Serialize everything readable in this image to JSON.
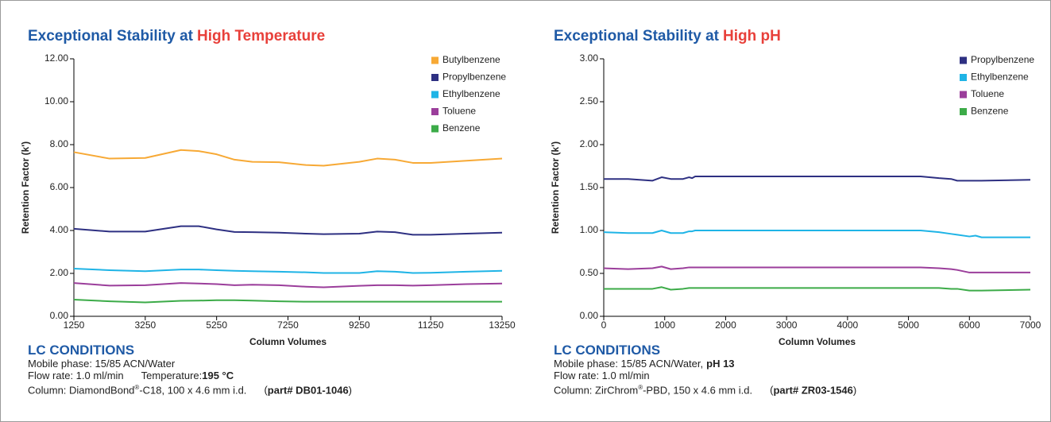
{
  "chart_data": [
    {
      "type": "line",
      "title": {
        "text": "Exceptional Stability at",
        "highlight": "High Temperature"
      },
      "xlabel": "Column Volumes",
      "ylabel": "Retention Factor (k')",
      "x": [
        1250,
        2250,
        3250,
        4250,
        4750,
        5250,
        5750,
        6250,
        7000,
        7750,
        8250,
        9250,
        9750,
        10250,
        10750,
        11250,
        12250,
        13250
      ],
      "xlim": [
        1250,
        13250
      ],
      "xticks": [
        1250,
        3250,
        5250,
        7250,
        9250,
        11250,
        13250
      ],
      "ylim": [
        0,
        12
      ],
      "yticks": [
        {
          "value": 0,
          "label": "0.00"
        },
        {
          "value": 2,
          "label": "2.00"
        },
        {
          "value": 4,
          "label": "4.00"
        },
        {
          "value": 6,
          "label": "6.00"
        },
        {
          "value": 8,
          "label": "8.00"
        },
        {
          "value": 10,
          "label": "10.00"
        },
        {
          "value": 12,
          "label": "12.00"
        }
      ],
      "legend": "upper right",
      "grid": false,
      "series": [
        {
          "name": "Butylbenzene",
          "color": "#f7a935",
          "values": [
            7.65,
            7.35,
            7.38,
            7.75,
            7.7,
            7.55,
            7.3,
            7.2,
            7.18,
            7.05,
            7.02,
            7.2,
            7.35,
            7.3,
            7.15,
            7.15,
            7.25,
            7.35
          ]
        },
        {
          "name": "Propylbenzene",
          "color": "#2e3082",
          "values": [
            4.08,
            3.95,
            3.95,
            4.2,
            4.2,
            4.05,
            3.93,
            3.92,
            3.9,
            3.85,
            3.83,
            3.85,
            3.95,
            3.92,
            3.8,
            3.8,
            3.85,
            3.9
          ]
        },
        {
          "name": "Ethylbenzene",
          "color": "#1fb4e6",
          "values": [
            2.22,
            2.15,
            2.1,
            2.18,
            2.18,
            2.15,
            2.12,
            2.1,
            2.08,
            2.05,
            2.02,
            2.02,
            2.1,
            2.08,
            2.02,
            2.03,
            2.08,
            2.12
          ]
        },
        {
          "name": "Toluene",
          "color": "#9b3e9b",
          "values": [
            1.55,
            1.43,
            1.45,
            1.55,
            1.53,
            1.5,
            1.45,
            1.47,
            1.45,
            1.38,
            1.35,
            1.42,
            1.45,
            1.45,
            1.43,
            1.45,
            1.5,
            1.53
          ]
        },
        {
          "name": "Benzene",
          "color": "#3cab48",
          "values": [
            0.78,
            0.7,
            0.65,
            0.72,
            0.73,
            0.75,
            0.75,
            0.73,
            0.7,
            0.68,
            0.68,
            0.68,
            0.68,
            0.68,
            0.68,
            0.68,
            0.68,
            0.68
          ]
        }
      ],
      "conditions": {
        "heading": "LC CONDITIONS",
        "lines": [
          [
            {
              "text": "Mobile phase: 15/85 ACN/Water"
            }
          ],
          [
            {
              "text": "Flow rate: 1.0 ml/min"
            },
            {
              "text": "Temperature:",
              "style": "gap"
            },
            {
              "text": "195 °C",
              "style": "b"
            }
          ],
          [
            {
              "text": "Column: DiamondBond"
            },
            {
              "text": "®",
              "style": "sup"
            },
            {
              "text": "-C18, 100 x 4.6 mm i.d."
            },
            {
              "text": "(",
              "style": "gap"
            },
            {
              "text": "part# DB01-1046",
              "style": "b"
            },
            {
              "text": ")"
            }
          ]
        ]
      }
    },
    {
      "type": "line",
      "title": {
        "text": "Exceptional Stability at",
        "highlight": "High pH"
      },
      "xlabel": "Column Volumes",
      "ylabel": "Retention Factor (k')",
      "x": [
        0,
        400,
        800,
        950,
        1100,
        1300,
        1400,
        1450,
        1500,
        1600,
        5200,
        5500,
        5700,
        5800,
        6000,
        6100,
        6200,
        7000
      ],
      "xlim": [
        0,
        7000
      ],
      "xticks": [
        0,
        1000,
        2000,
        3000,
        4000,
        5000,
        6000,
        7000
      ],
      "ylim": [
        0,
        3
      ],
      "yticks": [
        {
          "value": 0,
          "label": "0.00"
        },
        {
          "value": 0.5,
          "label": "0.50"
        },
        {
          "value": 1,
          "label": "1.00"
        },
        {
          "value": 1.5,
          "label": "1.50"
        },
        {
          "value": 2,
          "label": "2.00"
        },
        {
          "value": 2.5,
          "label": "2.50"
        },
        {
          "value": 3,
          "label": "3.00"
        }
      ],
      "legend": "upper right",
      "grid": false,
      "series": [
        {
          "name": "Propylbenzene",
          "color": "#2e3082",
          "values": [
            1.6,
            1.6,
            1.58,
            1.62,
            1.6,
            1.6,
            1.62,
            1.61,
            1.63,
            1.63,
            1.63,
            1.61,
            1.6,
            1.58,
            1.58,
            1.58,
            1.58,
            1.59
          ]
        },
        {
          "name": "Ethylbenzene",
          "color": "#1fb4e6",
          "values": [
            0.98,
            0.97,
            0.97,
            1.0,
            0.97,
            0.97,
            0.99,
            0.99,
            1.0,
            1.0,
            1.0,
            0.98,
            0.96,
            0.95,
            0.93,
            0.94,
            0.92,
            0.92
          ]
        },
        {
          "name": "Toluene",
          "color": "#9b3e9b",
          "values": [
            0.56,
            0.55,
            0.56,
            0.58,
            0.55,
            0.56,
            0.57,
            0.57,
            0.57,
            0.57,
            0.57,
            0.56,
            0.55,
            0.54,
            0.51,
            0.51,
            0.51,
            0.51
          ]
        },
        {
          "name": "Benzene",
          "color": "#3cab48",
          "values": [
            0.32,
            0.32,
            0.32,
            0.34,
            0.31,
            0.32,
            0.33,
            0.33,
            0.33,
            0.33,
            0.33,
            0.33,
            0.32,
            0.32,
            0.3,
            0.3,
            0.3,
            0.31
          ]
        }
      ],
      "conditions": {
        "heading": "LC CONDITIONS",
        "lines": [
          [
            {
              "text": "Mobile phase: 15/85 ACN/Water,"
            },
            {
              "text": "pH 13",
              "style": "b"
            }
          ],
          [
            {
              "text": "Flow rate: 1.0 ml/min"
            }
          ],
          [
            {
              "text": "Column: ZirChrom"
            },
            {
              "text": "®",
              "style": "sup"
            },
            {
              "text": "-PBD, 150 x 4.6 mm i.d."
            },
            {
              "text": "(",
              "style": "gap"
            },
            {
              "text": "part# ZR03-1546",
              "style": "b"
            },
            {
              "text": ")"
            }
          ]
        ]
      }
    }
  ]
}
